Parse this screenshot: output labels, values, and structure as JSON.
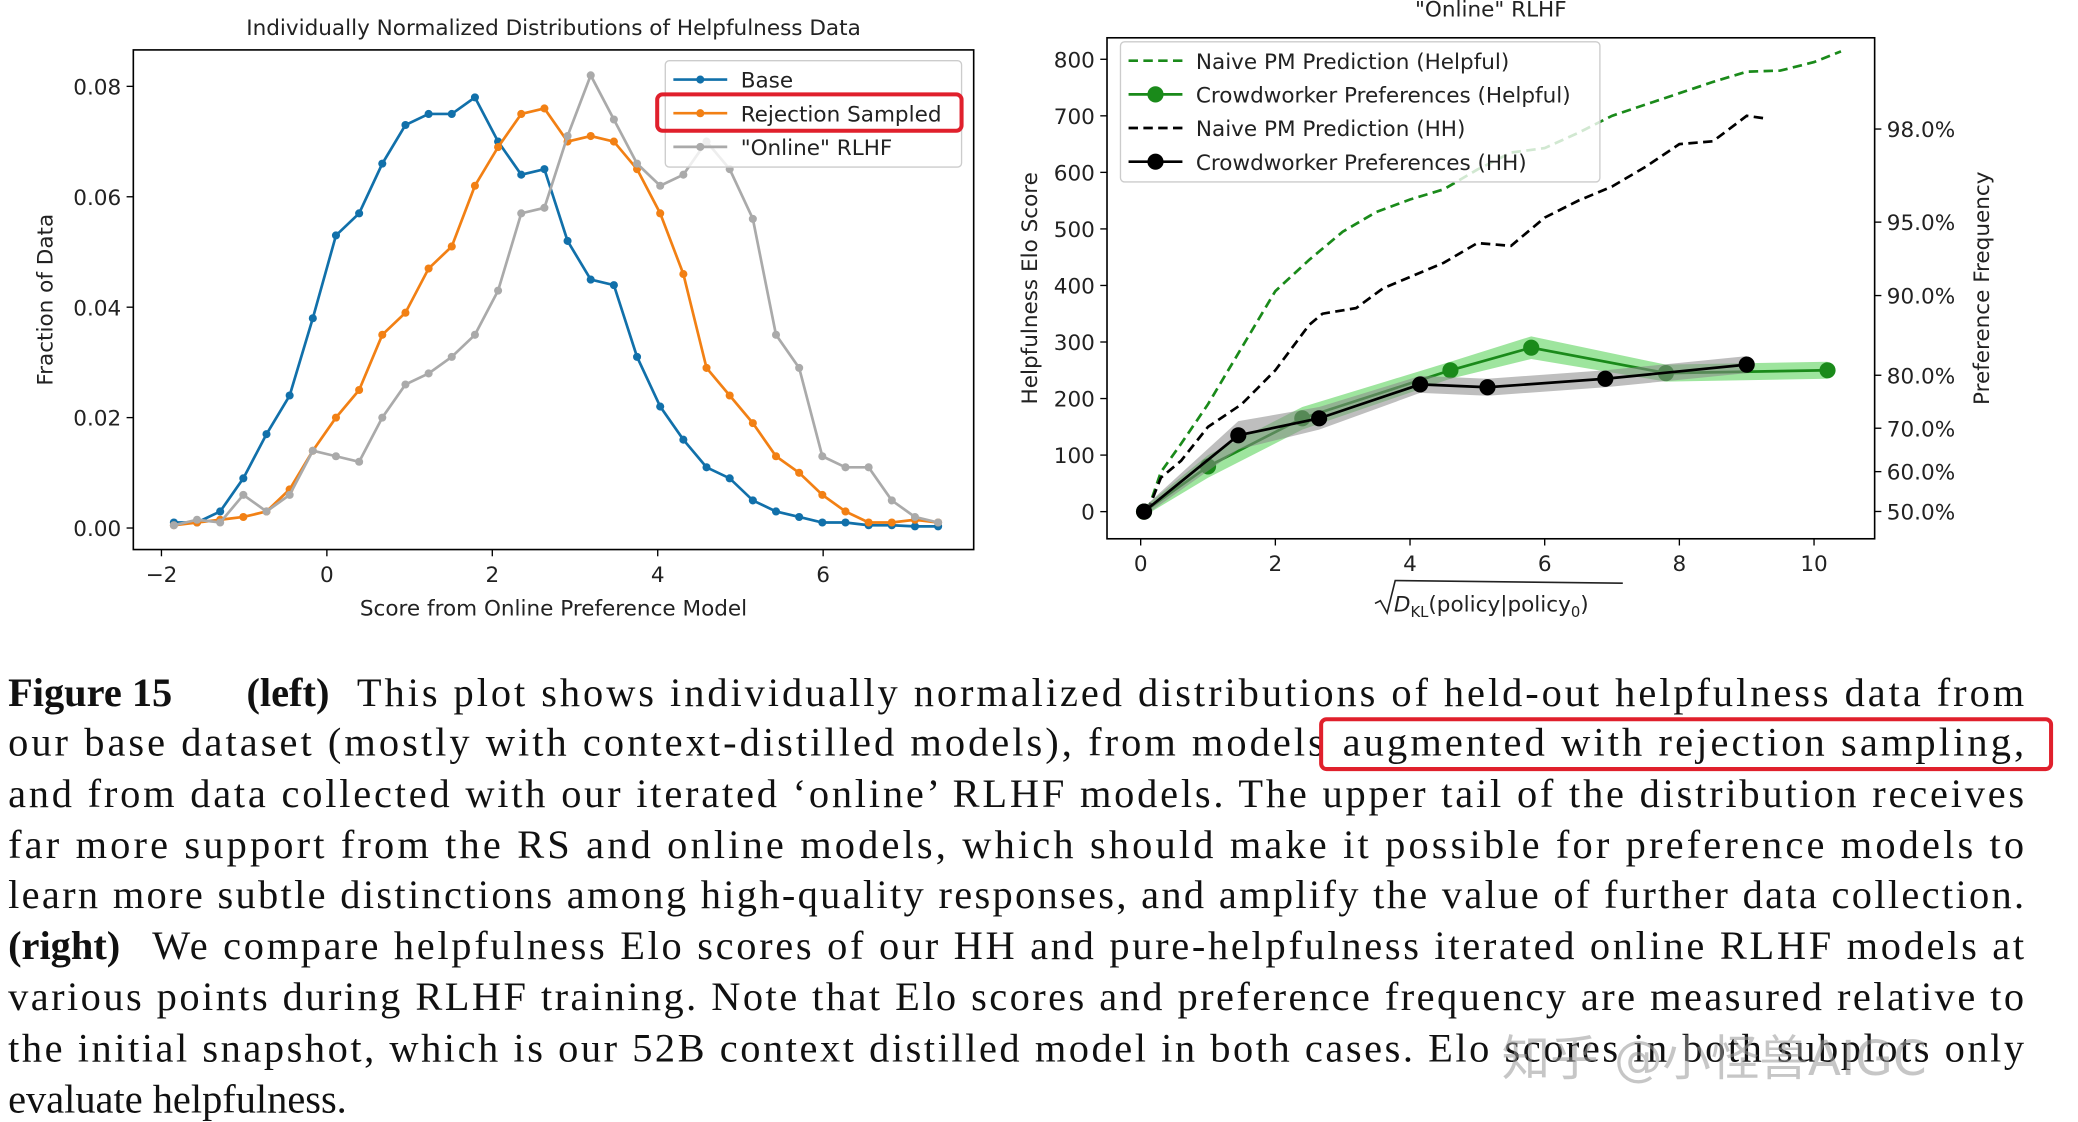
{
  "chart_data": [
    {
      "type": "line",
      "title": "Individually Normalized Distributions of Helpfulness Data",
      "x_label": "Score from Online Preference Model",
      "y_label": "Fraction of Data",
      "x": [
        -1.85,
        -1.57,
        -1.29,
        -1.01,
        -0.73,
        -0.45,
        -0.17,
        0.11,
        0.39,
        0.67,
        0.95,
        1.23,
        1.51,
        1.79,
        2.07,
        2.35,
        2.63,
        2.91,
        3.19,
        3.47,
        3.75,
        4.03,
        4.31,
        4.59,
        4.87,
        5.15,
        5.43,
        5.71,
        5.99,
        6.27,
        6.55,
        6.83,
        7.11,
        7.39
      ],
      "series": [
        {
          "name": "Base",
          "color": "#1170aa",
          "values": [
            0.001,
            0.001,
            0.003,
            0.009,
            0.017,
            0.024,
            0.038,
            0.053,
            0.057,
            0.066,
            0.073,
            0.075,
            0.075,
            0.078,
            0.07,
            0.064,
            0.065,
            0.052,
            0.045,
            0.044,
            0.031,
            0.022,
            0.016,
            0.011,
            0.009,
            0.005,
            0.003,
            0.002,
            0.001,
            0.001,
            0.0005,
            0.0005,
            0.0003,
            0.0003
          ]
        },
        {
          "name": "Rejection Sampled",
          "color": "#f28014",
          "values": [
            0.0005,
            0.001,
            0.0015,
            0.002,
            0.003,
            0.007,
            0.014,
            0.02,
            0.025,
            0.035,
            0.039,
            0.047,
            0.051,
            0.062,
            0.069,
            0.075,
            0.076,
            0.07,
            0.071,
            0.07,
            0.065,
            0.057,
            0.046,
            0.029,
            0.024,
            0.019,
            0.013,
            0.01,
            0.006,
            0.003,
            0.001,
            0.001,
            0.0015,
            0.001
          ]
        },
        {
          "name": "\"Online\" RLHF",
          "color": "#aaaaaa",
          "values": [
            0.0005,
            0.0015,
            0.001,
            0.006,
            0.003,
            0.006,
            0.014,
            0.013,
            0.012,
            0.02,
            0.026,
            0.028,
            0.031,
            0.035,
            0.043,
            0.057,
            0.058,
            0.071,
            0.082,
            0.074,
            0.066,
            0.062,
            0.064,
            0.07,
            0.065,
            0.056,
            0.035,
            0.029,
            0.013,
            0.011,
            0.011,
            0.005,
            0.002,
            0.001
          ]
        }
      ],
      "xlim": [
        -2.34,
        7.82
      ],
      "ylim": [
        -0.0039,
        0.0866
      ],
      "xticks": [
        {
          "value": -2,
          "label": "−2"
        },
        0,
        2,
        4,
        6
      ],
      "yticks": [
        {
          "value": 0,
          "label": "0.00"
        },
        {
          "value": 0.02,
          "label": "0.02"
        },
        {
          "value": 0.04,
          "label": "0.04"
        },
        {
          "value": 0.06,
          "label": "0.06"
        },
        {
          "value": 0.08,
          "label": "0.08"
        }
      ],
      "legend": "upper right",
      "marker_size": 3
    },
    {
      "type": "line",
      "title": "\"Online\" RLHF",
      "x_label_parts": [
        "D",
        "KL",
        "(policy|policy",
        "0",
        ")"
      ],
      "y_label": "Helpfulness Elo Score",
      "y2_label": "Preference Frequency",
      "series": [
        {
          "name": "Naive PM Prediction (Helpful)",
          "color": "#1a8a1a",
          "dash": true,
          "x": [
            0.1,
            0.3,
            0.6,
            1,
            1.5,
            2,
            2.5,
            3,
            3.5,
            4,
            4.5,
            5,
            5.5,
            6,
            6.5,
            7,
            7.5,
            8,
            8.5,
            9,
            9.5,
            10,
            10.4
          ],
          "values": [
            0,
            70,
            120,
            190,
            290,
            390,
            445,
            495,
            530,
            552,
            570,
            605,
            635,
            643,
            670,
            700,
            720,
            740,
            760,
            778,
            780,
            795,
            814
          ]
        },
        {
          "name": "Crowdworker Preferences (Helpful)",
          "color": "#1a8a1a",
          "band_color": "#4fcf4f",
          "x": [
            0.05,
            1.0,
            2.4,
            4.6,
            5.8,
            7.8,
            10.2
          ],
          "values": [
            0,
            80,
            165,
            250,
            290,
            245,
            250
          ],
          "errors": [
            8,
            20,
            20,
            15,
            20,
            15,
            15
          ]
        },
        {
          "name": "Naive PM Prediction (HH)",
          "color": "#000000",
          "dash": true,
          "x": [
            0.1,
            0.3,
            0.6,
            1,
            1.5,
            2,
            2.5,
            2.7,
            3.2,
            3.6,
            4,
            4.5,
            5,
            5.5,
            6,
            6.5,
            7,
            7.5,
            8,
            8.5,
            9,
            9.3
          ],
          "values": [
            0,
            60,
            90,
            150,
            190,
            250,
            330,
            350,
            360,
            395,
            415,
            440,
            475,
            470,
            520,
            550,
            575,
            610,
            650,
            655,
            700,
            695
          ]
        },
        {
          "name": "Crowdworker Preferences (HH)",
          "color": "#000000",
          "band_color": "#888888",
          "x": [
            0.05,
            1.45,
            2.65,
            4.15,
            5.15,
            6.9,
            9.0
          ],
          "values": [
            0,
            135,
            165,
            225,
            220,
            235,
            260
          ],
          "errors": [
            8,
            25,
            20,
            15,
            15,
            15,
            15
          ]
        }
      ],
      "xlim": [
        -0.5,
        10.9
      ],
      "ylim": [
        -48,
        838
      ],
      "xticks": [
        0,
        2,
        4,
        6,
        8,
        10
      ],
      "yticks": [
        0,
        100,
        200,
        300,
        400,
        500,
        600,
        700,
        800
      ],
      "y2lim": [
        43.1,
        99.2
      ],
      "y2scale": "logit",
      "y2ticks": [
        {
          "value": 50,
          "label": "50.0%"
        },
        {
          "value": 60,
          "label": "60.0%"
        },
        {
          "value": 70,
          "label": "70.0%"
        },
        {
          "value": 80,
          "label": "80.0%"
        },
        {
          "value": 90,
          "label": "90.0%"
        },
        {
          "value": 95,
          "label": "95.0%"
        },
        {
          "value": 98,
          "label": "98.0%"
        }
      ],
      "legend": "upper left",
      "marker_size": 6
    }
  ],
  "caption": {
    "label": "Figure 15",
    "left_label": "(left)",
    "left_lines": [
      "This plot shows individually normalized distributions of held-out helpfulness data from",
      "our base dataset (mostly with context-distilled models), from models",
      "augmented with rejection sampling,",
      "and from data collected with our iterated ‘online’ RLHF models. The upper tail of the distribution receives",
      "far more support from the RS and online models, which should make it possible for preference models to",
      "learn more subtle distinctions among high-quality responses, and amplify the value of further data collection."
    ],
    "right_label": "(right)",
    "right_lines": [
      "We compare helpfulness Elo scores of our HH and pure-helpfulness iterated online RLHF models at",
      "various points during RLHF training. Note that Elo scores and preference frequency are measured relative to",
      "the initial snapshot, which is our 52B context distilled model in both cases. Elo scores in both subplots only",
      "evaluate helpfulness."
    ]
  },
  "watermark": "知乎 @小怪兽AIGC"
}
